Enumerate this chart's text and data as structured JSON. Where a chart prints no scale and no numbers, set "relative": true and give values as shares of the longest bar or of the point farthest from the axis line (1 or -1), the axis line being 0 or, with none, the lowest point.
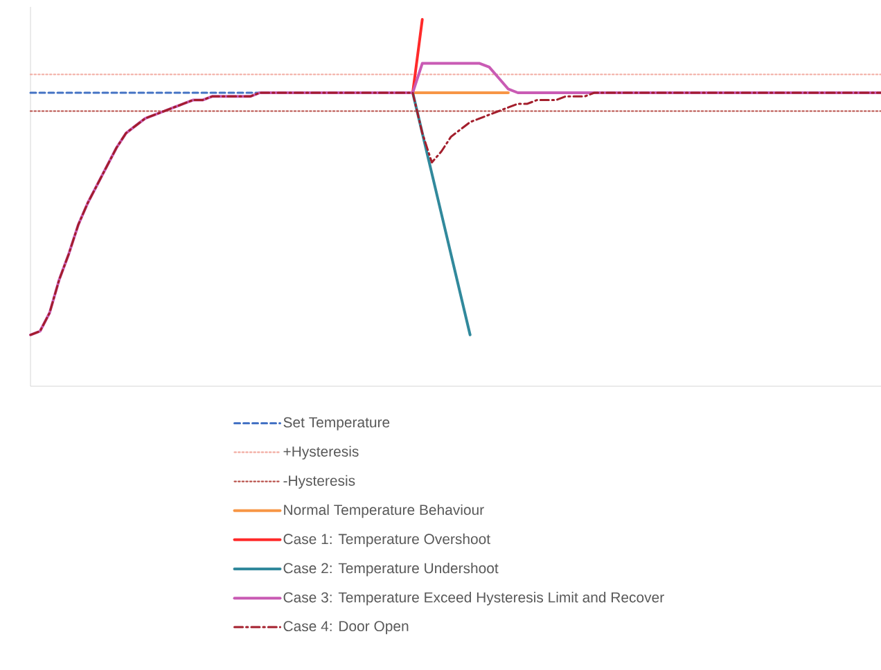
{
  "chart_data": {
    "type": "line",
    "relative": true,
    "legend": "bottom",
    "categories": [
      null,
      null,
      null,
      null,
      null,
      null,
      null,
      null,
      null,
      null,
      null,
      null,
      null,
      null,
      null,
      null,
      null,
      null,
      null,
      null,
      null,
      null,
      null,
      null,
      null,
      null,
      null,
      null,
      null,
      null,
      null,
      null,
      null,
      null,
      null,
      null,
      null,
      null,
      null,
      null,
      null,
      null,
      null,
      null,
      null,
      null,
      null,
      null,
      null,
      null,
      null,
      null,
      null,
      null,
      null,
      null,
      null,
      null,
      null,
      null,
      null,
      null,
      null,
      null,
      null,
      null,
      null,
      null,
      null,
      null,
      null,
      null,
      null,
      null,
      null,
      null,
      null,
      null,
      null,
      null,
      null,
      null,
      null,
      null,
      null,
      null,
      null,
      null,
      null,
      null
    ],
    "series": [
      {
        "name": "Set Temperature",
        "color": "#4472c4",
        "line_style": "dashed",
        "values": [
          0.8,
          0.8,
          0.8,
          0.8,
          0.8,
          0.8,
          0.8,
          0.8,
          0.8,
          0.8,
          0.8,
          0.8,
          0.8,
          0.8,
          0.8,
          0.8,
          0.8,
          0.8,
          0.8,
          0.8,
          0.8,
          0.8,
          0.8,
          0.8,
          0.8,
          null,
          null,
          null,
          null,
          null,
          null,
          null,
          null,
          null,
          null,
          null,
          null,
          null,
          null,
          null,
          null,
          null,
          null,
          null,
          null,
          null,
          null,
          null,
          null,
          null,
          null,
          null,
          null,
          null,
          null,
          null,
          null,
          null,
          null,
          null,
          null,
          null,
          null,
          null,
          null,
          null,
          null,
          null,
          null,
          null,
          null,
          null,
          null,
          null,
          null,
          null,
          null,
          null,
          null,
          null,
          null,
          null,
          null,
          null,
          null,
          null,
          null,
          null,
          null,
          null
        ]
      },
      {
        "name": "+Hysteresis",
        "color": "#f2aaa0",
        "line_style": "dotted",
        "values": [
          0.85,
          0.85,
          0.85,
          0.85,
          0.85,
          0.85,
          0.85,
          0.85,
          0.85,
          0.85,
          0.85,
          0.85,
          0.85,
          0.85,
          0.85,
          0.85,
          0.85,
          0.85,
          0.85,
          0.85,
          0.85,
          0.85,
          0.85,
          0.85,
          0.85,
          0.85,
          0.85,
          0.85,
          0.85,
          0.85,
          0.85,
          0.85,
          0.85,
          0.85,
          0.85,
          0.85,
          0.85,
          0.85,
          0.85,
          0.85,
          0.85,
          0.85,
          0.85,
          0.85,
          0.85,
          0.85,
          0.85,
          0.85,
          0.85,
          0.85,
          0.85,
          0.85,
          0.85,
          0.85,
          0.85,
          0.85,
          0.85,
          0.85,
          0.85,
          0.85,
          0.85,
          0.85,
          0.85,
          0.85,
          0.85,
          0.85,
          0.85,
          0.85,
          0.85,
          0.85,
          0.85,
          0.85,
          0.85,
          0.85,
          0.85,
          0.85,
          0.85,
          0.85,
          0.85,
          0.85,
          0.85,
          0.85,
          0.85,
          0.85,
          0.85,
          0.85,
          0.85,
          0.85,
          0.85,
          0.85
        ]
      },
      {
        "name": "-Hysteresis",
        "color": "#b8504a",
        "line_style": "dotted",
        "values": [
          0.75,
          0.75,
          0.75,
          0.75,
          0.75,
          0.75,
          0.75,
          0.75,
          0.75,
          0.75,
          0.75,
          0.75,
          0.75,
          0.75,
          0.75,
          0.75,
          0.75,
          0.75,
          0.75,
          0.75,
          0.75,
          0.75,
          0.75,
          0.75,
          0.75,
          0.75,
          0.75,
          0.75,
          0.75,
          0.75,
          0.75,
          0.75,
          0.75,
          0.75,
          0.75,
          0.75,
          0.75,
          0.75,
          0.75,
          0.75,
          0.75,
          0.75,
          0.75,
          0.75,
          0.75,
          0.75,
          0.75,
          0.75,
          0.75,
          0.75,
          0.75,
          0.75,
          0.75,
          0.75,
          0.75,
          0.75,
          0.75,
          0.75,
          0.75,
          0.75,
          0.75,
          0.75,
          0.75,
          0.75,
          0.75,
          0.75,
          0.75,
          0.75,
          0.75,
          0.75,
          0.75,
          0.75,
          0.75,
          0.75,
          0.75,
          0.75,
          0.75,
          0.75,
          0.75,
          0.75,
          0.75,
          0.75,
          0.75,
          0.75,
          0.75,
          0.75,
          0.75,
          0.75,
          0.75,
          0.75
        ]
      },
      {
        "name": "Normal Temperature Behaviour",
        "color": "#f79646",
        "line_style": "solid",
        "values": [
          null,
          null,
          null,
          null,
          null,
          null,
          null,
          null,
          null,
          null,
          null,
          null,
          null,
          null,
          null,
          null,
          null,
          null,
          null,
          null,
          null,
          null,
          null,
          null,
          null,
          null,
          null,
          null,
          null,
          null,
          null,
          null,
          null,
          null,
          null,
          null,
          null,
          null,
          null,
          null,
          0.8,
          0.8,
          0.8,
          0.8,
          0.8,
          0.8,
          0.8,
          0.8,
          0.8,
          0.8,
          0.8,
          null,
          null,
          null,
          null,
          null,
          null,
          null,
          null,
          null,
          null,
          null,
          null,
          null,
          null,
          null,
          null,
          null,
          null,
          null,
          null,
          null,
          null,
          null,
          null,
          null,
          null,
          null,
          null,
          null,
          null,
          null,
          null,
          null,
          null,
          null,
          null,
          null,
          null,
          null
        ]
      },
      {
        "name": "Case 1: Temperature Overshoot",
        "color": "#ff2a2a",
        "line_style": "solid",
        "values": [
          null,
          null,
          null,
          null,
          null,
          null,
          null,
          null,
          null,
          null,
          null,
          null,
          null,
          null,
          null,
          null,
          null,
          null,
          null,
          null,
          null,
          null,
          null,
          null,
          null,
          null,
          null,
          null,
          null,
          null,
          null,
          null,
          null,
          null,
          null,
          null,
          null,
          null,
          null,
          null,
          0.8,
          1,
          null,
          null,
          null,
          null,
          null,
          null,
          null,
          null,
          null,
          null,
          null,
          null,
          null,
          null,
          null,
          null,
          null,
          null,
          null,
          null,
          null,
          null,
          null,
          null,
          null,
          null,
          null,
          null,
          null,
          null,
          null,
          null,
          null,
          null,
          null,
          null,
          null,
          null,
          null,
          null,
          null,
          null,
          null,
          null,
          null,
          null,
          null,
          null
        ]
      },
      {
        "name": "Case 2: Temperature Undershoot",
        "color": "#31899c",
        "line_style": "solid",
        "values": [
          null,
          null,
          null,
          null,
          null,
          null,
          null,
          null,
          null,
          null,
          null,
          null,
          null,
          null,
          null,
          null,
          null,
          null,
          null,
          null,
          null,
          null,
          null,
          null,
          null,
          null,
          null,
          null,
          null,
          null,
          null,
          null,
          null,
          null,
          null,
          null,
          null,
          null,
          null,
          null,
          0.8,
          0.69,
          0.58,
          0.47,
          0.36,
          0.25,
          0.14,
          null,
          null,
          null,
          null,
          null,
          null,
          null,
          null,
          null,
          null,
          null,
          null,
          null,
          null,
          null,
          null,
          null,
          null,
          null,
          null,
          null,
          null,
          null,
          null,
          null,
          null,
          null,
          null,
          null,
          null,
          null,
          null,
          null,
          null,
          null,
          null,
          null,
          null,
          null,
          null,
          null,
          null,
          null
        ]
      },
      {
        "name": "Case 3: Temperature Exceed Hysteresis Limit and Recover",
        "color": "#c95bb4",
        "line_style": "solid",
        "values": [
          0.14,
          0.15,
          0.2,
          0.29,
          0.36,
          0.44,
          0.5,
          0.55,
          0.6,
          0.65,
          0.69,
          0.71,
          0.73,
          0.74,
          0.75,
          0.76,
          0.77,
          0.78,
          0.78,
          0.79,
          0.79,
          0.79,
          0.79,
          0.79,
          0.8,
          0.8,
          0.8,
          0.8,
          0.8,
          0.8,
          0.8,
          0.8,
          0.8,
          0.8,
          0.8,
          0.8,
          0.8,
          0.8,
          0.8,
          0.8,
          0.8,
          0.88,
          0.88,
          0.88,
          0.88,
          0.88,
          0.88,
          0.88,
          0.87,
          0.84,
          0.81,
          0.8,
          0.8,
          0.8,
          0.8,
          0.8,
          0.8,
          0.8,
          0.8,
          0.8,
          0.8,
          0.8,
          0.8,
          0.8,
          0.8,
          0.8,
          0.8,
          0.8,
          0.8,
          0.8,
          0.8,
          0.8,
          0.8,
          0.8,
          0.8,
          0.8,
          0.8,
          0.8,
          0.8,
          0.8,
          0.8,
          0.8,
          0.8,
          0.8,
          0.8,
          0.8,
          0.8,
          0.8,
          0.8,
          0.8
        ]
      },
      {
        "name": "Case 4: Door Open",
        "color": "#a31e2c",
        "line_style": "dashdot",
        "values": [
          0.14,
          0.15,
          0.2,
          0.29,
          0.36,
          0.44,
          0.5,
          0.55,
          0.6,
          0.65,
          0.69,
          0.71,
          0.73,
          0.74,
          0.75,
          0.76,
          0.77,
          0.78,
          0.78,
          0.79,
          0.79,
          0.79,
          0.79,
          0.79,
          0.8,
          0.8,
          0.8,
          0.8,
          0.8,
          0.8,
          0.8,
          0.8,
          0.8,
          0.8,
          0.8,
          0.8,
          0.8,
          0.8,
          0.8,
          0.8,
          0.8,
          0.69,
          0.61,
          0.64,
          0.68,
          0.7,
          0.72,
          0.73,
          0.74,
          0.75,
          0.76,
          0.77,
          0.77,
          0.78,
          0.78,
          0.78,
          0.79,
          0.79,
          0.79,
          0.8,
          0.8,
          0.8,
          0.8,
          0.8,
          0.8,
          0.8,
          0.8,
          0.8,
          0.8,
          0.8,
          0.8,
          0.8,
          0.8,
          0.8,
          0.8,
          0.8,
          0.8,
          0.8,
          0.8,
          0.8,
          0.8,
          0.8,
          0.8,
          0.8,
          0.8,
          0.8,
          0.8,
          0.8,
          0.8,
          0.8
        ]
      }
    ]
  }
}
